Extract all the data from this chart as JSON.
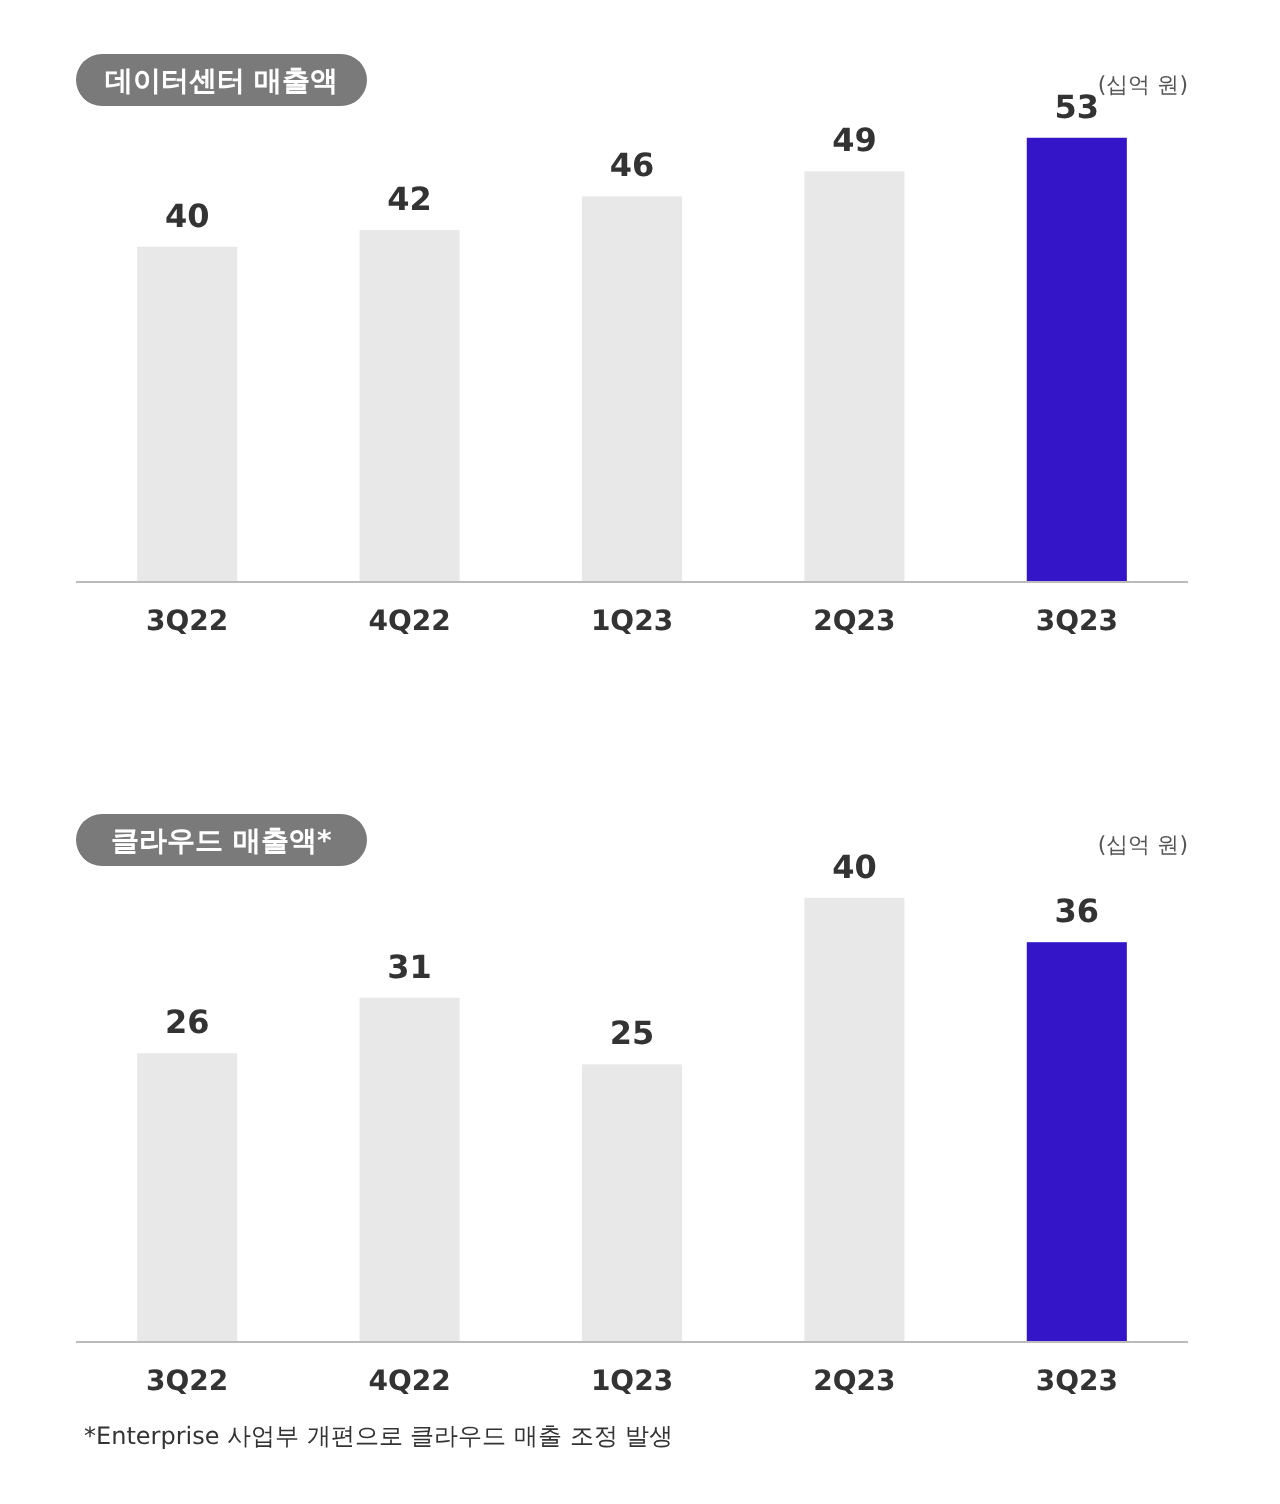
{
  "chart_data": [
    {
      "type": "bar",
      "title": "데이터센터 매출액",
      "subtitle": "(십억 원)",
      "categories": [
        "3Q22",
        "4Q22",
        "1Q23",
        "2Q23",
        "3Q23"
      ],
      "values": [
        40,
        42,
        46,
        49,
        53
      ],
      "colors": [
        "#e8e8e8",
        "#e8e8e8",
        "#e8e8e8",
        "#e8e8e8",
        "#3415c8"
      ],
      "tick_labels": "x",
      "data_labels": true
    },
    {
      "type": "bar",
      "title": "클라우드 매출액*",
      "subtitle": "(십억 원)",
      "categories": [
        "3Q22",
        "4Q22",
        "1Q23",
        "2Q23",
        "3Q23"
      ],
      "values": [
        26,
        31,
        25,
        40,
        36
      ],
      "colors": [
        "#e8e8e8",
        "#e8e8e8",
        "#e8e8e8",
        "#e8e8e8",
        "#3415c8"
      ],
      "tick_labels": "x",
      "data_labels": true,
      "annotations": [
        "*Enterprise 사업부 개편으로 클라우드 매출 조정 발생"
      ]
    }
  ]
}
